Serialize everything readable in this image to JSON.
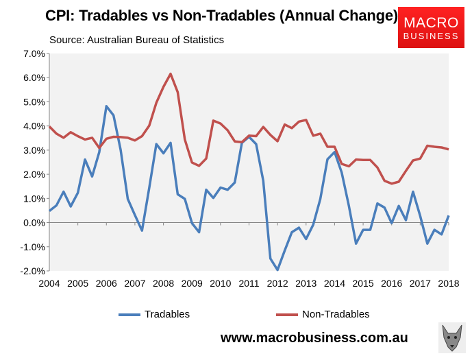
{
  "header": {
    "title": "CPI: Tradables vs Non-Tradables (Annual Change)",
    "subtitle": "Source: Australian Bureau of Statistics"
  },
  "logo": {
    "line1": "MACRO",
    "line2": "BUSINESS"
  },
  "footer": {
    "url": "www.macrobusiness.com.au"
  },
  "colors": {
    "tradables": "#4a7ebb",
    "non_tradables": "#c0504d",
    "plot_bg": "#f2f2f2"
  },
  "chart_data": {
    "type": "line",
    "xlim": [
      2004,
      2018
    ],
    "ylim": [
      -2,
      7
    ],
    "y_ticks": [
      "-2.0%",
      "-1.0%",
      "0.0%",
      "1.0%",
      "2.0%",
      "3.0%",
      "4.0%",
      "5.0%",
      "6.0%",
      "7.0%"
    ],
    "x_ticks": [
      "2004",
      "2005",
      "2006",
      "2007",
      "2008",
      "2009",
      "2010",
      "2011",
      "2012",
      "2013",
      "2014",
      "2015",
      "2016",
      "2017",
      "2018"
    ],
    "grid": false,
    "legend": "bottom",
    "x_step": 0.25,
    "series": [
      {
        "name": "Tradables",
        "values": [
          0.48,
          0.71,
          1.28,
          0.67,
          1.23,
          2.61,
          1.91,
          2.92,
          4.82,
          4.44,
          3.01,
          0.98,
          0.31,
          -0.33,
          1.43,
          3.25,
          2.87,
          3.3,
          1.17,
          0.98,
          -0.02,
          -0.4,
          1.36,
          1.02,
          1.45,
          1.36,
          1.66,
          3.3,
          3.55,
          3.25,
          1.73,
          -1.49,
          -1.96,
          -1.16,
          -0.4,
          -0.21,
          -0.68,
          -0.09,
          0.98,
          2.62,
          2.92,
          2.07,
          0.69,
          -0.87,
          -0.3,
          -0.3,
          0.79,
          0.62,
          -0.02,
          0.69,
          0.1,
          1.28,
          0.27,
          -0.87,
          -0.3,
          -0.49,
          0.29
        ]
      },
      {
        "name": "Non-Tradables",
        "values": [
          3.98,
          3.68,
          3.51,
          3.74,
          3.58,
          3.44,
          3.51,
          3.09,
          3.47,
          3.55,
          3.54,
          3.51,
          3.4,
          3.58,
          4.01,
          4.96,
          5.62,
          6.16,
          5.4,
          3.44,
          2.49,
          2.35,
          2.65,
          4.22,
          4.1,
          3.82,
          3.36,
          3.33,
          3.6,
          3.58,
          3.96,
          3.63,
          3.37,
          4.06,
          3.91,
          4.18,
          4.25,
          3.6,
          3.68,
          3.14,
          3.14,
          2.43,
          2.33,
          2.61,
          2.59,
          2.59,
          2.28,
          1.73,
          1.61,
          1.69,
          2.14,
          2.57,
          2.65,
          3.18,
          3.14,
          3.11,
          3.03
        ]
      }
    ]
  }
}
